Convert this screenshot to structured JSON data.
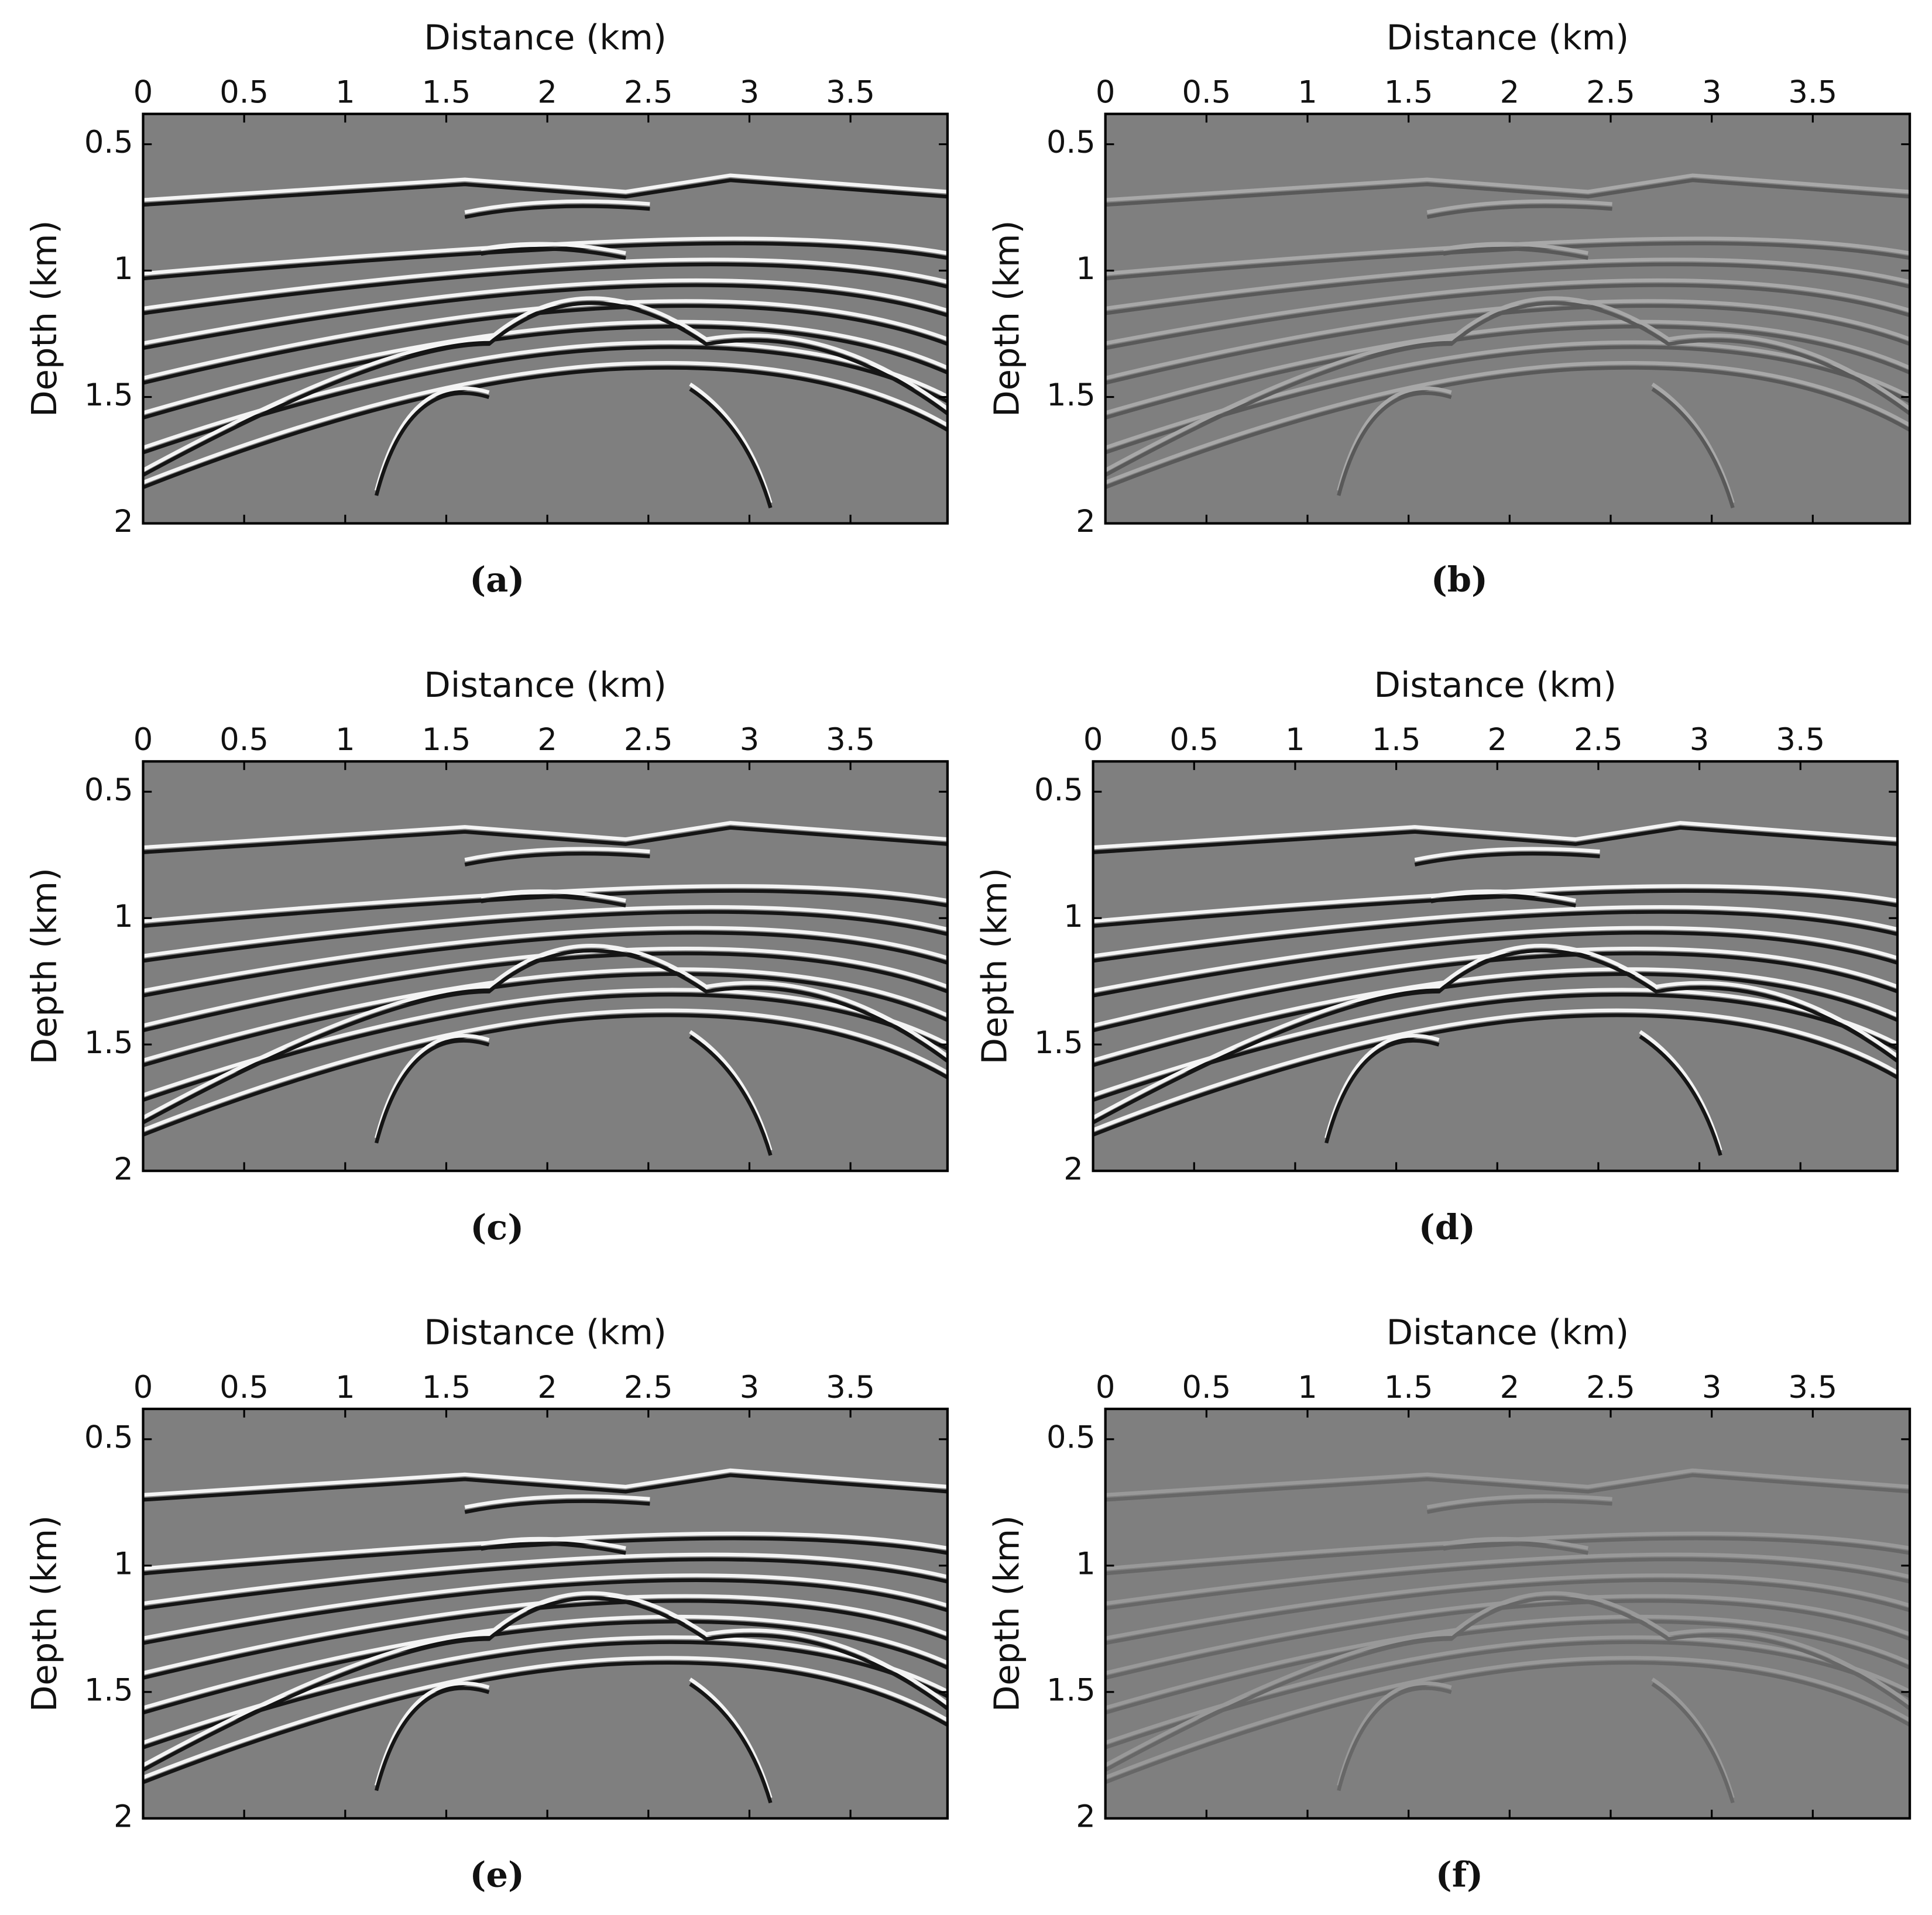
{
  "chart_data": [
    {
      "type": "image",
      "caption": "(a)",
      "xlabel": "Distance (km)",
      "ylabel": "Depth (km)",
      "xlim": [
        0,
        3.98
      ],
      "ylim": [
        2,
        0.38
      ],
      "xticks": [
        0,
        0.5,
        1,
        1.5,
        2,
        2.5,
        3,
        3.5
      ],
      "yticks": [
        0.5,
        1,
        1.5,
        2
      ]
    },
    {
      "type": "image",
      "caption": "(b)",
      "xlabel": "Distance (km)",
      "ylabel": "Depth (km)",
      "xlim": [
        0,
        3.98
      ],
      "ylim": [
        2,
        0.38
      ],
      "xticks": [
        0,
        0.5,
        1,
        1.5,
        2,
        2.5,
        3,
        3.5
      ],
      "yticks": [
        0.5,
        1,
        1.5,
        2
      ]
    },
    {
      "type": "image",
      "caption": "(c)",
      "xlabel": "Distance (km)",
      "ylabel": "Depth (km)",
      "xlim": [
        0,
        3.98
      ],
      "ylim": [
        2,
        0.38
      ],
      "xticks": [
        0,
        0.5,
        1,
        1.5,
        2,
        2.5,
        3,
        3.5
      ],
      "yticks": [
        0.5,
        1,
        1.5,
        2
      ]
    },
    {
      "type": "image",
      "caption": "(d)",
      "xlabel": "Distance (km)",
      "ylabel": "Depth (km)",
      "xlim": [
        0,
        3.98
      ],
      "ylim": [
        2,
        0.38
      ],
      "xticks": [
        0,
        0.5,
        1,
        1.5,
        2,
        2.5,
        3,
        3.5
      ],
      "yticks": [
        0.5,
        1,
        1.5,
        2
      ]
    },
    {
      "type": "image",
      "caption": "(e)",
      "xlabel": "Distance (km)",
      "ylabel": "Depth (km)",
      "xlim": [
        0,
        3.98
      ],
      "ylim": [
        2,
        0.38
      ],
      "xticks": [
        0,
        0.5,
        1,
        1.5,
        2,
        2.5,
        3,
        3.5
      ],
      "yticks": [
        0.5,
        1,
        1.5,
        2
      ]
    },
    {
      "type": "image",
      "caption": "(f)",
      "xlabel": "Distance (km)",
      "ylabel": "Depth (km)",
      "xlim": [
        0,
        3.98
      ],
      "ylim": [
        2,
        0.38
      ],
      "xticks": [
        0,
        0.5,
        1,
        1.5,
        2,
        2.5,
        3,
        3.5
      ],
      "yticks": [
        0.5,
        1,
        1.5,
        2
      ]
    }
  ]
}
